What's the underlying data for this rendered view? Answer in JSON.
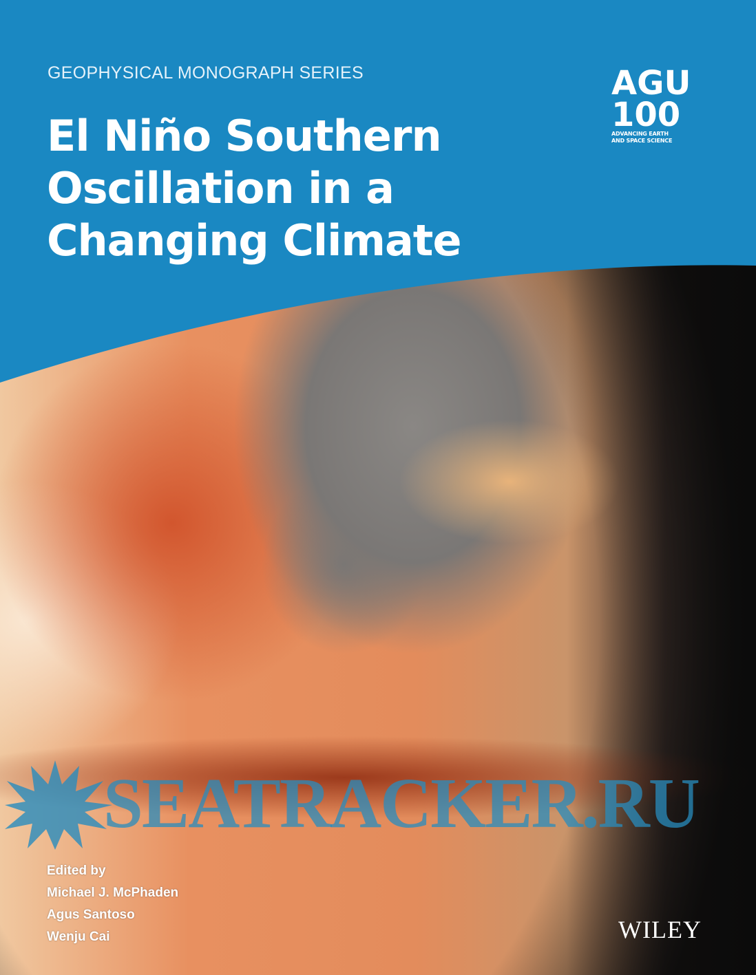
{
  "cover": {
    "series": "GEOPHYSICAL MONOGRAPH SERIES",
    "title_lines": [
      "El Niño Southern",
      "Oscillation in a",
      "Changing Climate"
    ],
    "logo": {
      "line1": "AGU",
      "line2": "100",
      "tagline1": "ADVANCING EARTH",
      "tagline2": "AND SPACE SCIENCE"
    },
    "editors": {
      "label": "Edited by",
      "names": [
        "Michael J. McPhaden",
        "Agus Santoso",
        "Wenju Cai"
      ]
    },
    "publisher": "WILEY",
    "watermark": "SEATRACKER.RU",
    "colors": {
      "band": "#1a88c2",
      "text": "#ffffff"
    }
  }
}
